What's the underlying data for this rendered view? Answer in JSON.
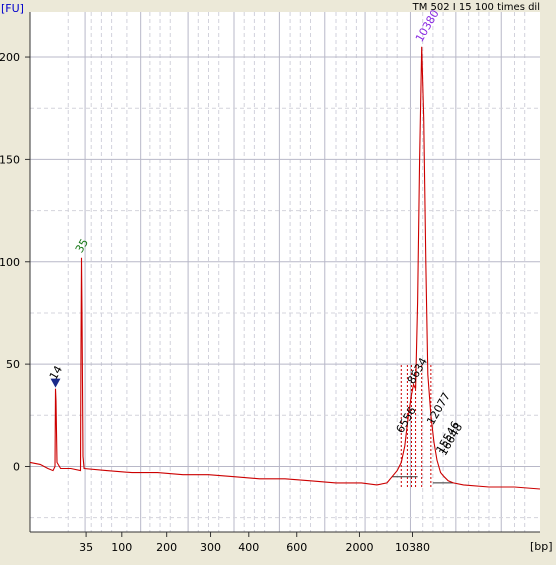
{
  "chart_data": {
    "type": "line",
    "title": "TM 502 I 15 100 times dil",
    "ylabel": "[FU]",
    "xlabel": "[bp]",
    "ylim": [
      -32,
      222
    ],
    "yticks": [
      0,
      50,
      100,
      150,
      200
    ],
    "xtick_labels": [
      "35",
      "100",
      "200",
      "300",
      "400",
      "600",
      "2000",
      "10380"
    ],
    "peak_labels": [
      {
        "label": "14",
        "size_bp": 14,
        "fu": 40,
        "color": "#000000"
      },
      {
        "label": "35",
        "size_bp": 35,
        "fu": 102,
        "color": "#1a7a1a"
      },
      {
        "label": "10380",
        "size_bp": 10380,
        "fu": 205,
        "color": "#8a2be2"
      },
      {
        "label": "8634",
        "size_bp": 8634,
        "fu": 38,
        "color": "#000000"
      },
      {
        "label": "6556",
        "size_bp": 6556,
        "fu": 14,
        "color": "#000000"
      },
      {
        "label": "12077",
        "size_bp": 12077,
        "fu": 18,
        "color": "#000000"
      },
      {
        "label": "15546",
        "size_bp": 15546,
        "fu": 4,
        "color": "#000000"
      },
      {
        "label": "16648",
        "size_bp": 16648,
        "fu": 3,
        "color": "#000000"
      }
    ],
    "series": [
      {
        "color": "#cc0000",
        "points": [
          [
            0.0,
            2
          ],
          [
            0.02,
            1
          ],
          [
            0.035,
            -1
          ],
          [
            0.045,
            -2
          ],
          [
            0.049,
            0
          ],
          [
            0.05,
            38
          ],
          [
            0.051,
            32
          ],
          [
            0.053,
            2
          ],
          [
            0.06,
            -1
          ],
          [
            0.08,
            -1
          ],
          [
            0.099,
            -2
          ],
          [
            0.1,
            60
          ],
          [
            0.101,
            102
          ],
          [
            0.102,
            75
          ],
          [
            0.104,
            5
          ],
          [
            0.106,
            -1
          ],
          [
            0.15,
            -2
          ],
          [
            0.2,
            -3
          ],
          [
            0.25,
            -3
          ],
          [
            0.3,
            -4
          ],
          [
            0.35,
            -4
          ],
          [
            0.4,
            -5
          ],
          [
            0.45,
            -6
          ],
          [
            0.5,
            -6
          ],
          [
            0.55,
            -7
          ],
          [
            0.6,
            -8
          ],
          [
            0.65,
            -8
          ],
          [
            0.68,
            -9
          ],
          [
            0.7,
            -8
          ],
          [
            0.71,
            -5
          ],
          [
            0.72,
            -2
          ],
          [
            0.728,
            2
          ],
          [
            0.735,
            10
          ],
          [
            0.742,
            25
          ],
          [
            0.748,
            35
          ],
          [
            0.752,
            40
          ],
          [
            0.756,
            38
          ],
          [
            0.76,
            80
          ],
          [
            0.764,
            150
          ],
          [
            0.768,
            205
          ],
          [
            0.772,
            170
          ],
          [
            0.776,
            100
          ],
          [
            0.78,
            45
          ],
          [
            0.786,
            25
          ],
          [
            0.792,
            12
          ],
          [
            0.798,
            3
          ],
          [
            0.805,
            -3
          ],
          [
            0.812,
            -5
          ],
          [
            0.82,
            -7
          ],
          [
            0.83,
            -8
          ],
          [
            0.85,
            -9
          ],
          [
            0.9,
            -10
          ],
          [
            0.95,
            -10
          ],
          [
            1.0,
            -11
          ]
        ]
      }
    ],
    "grid": true
  }
}
